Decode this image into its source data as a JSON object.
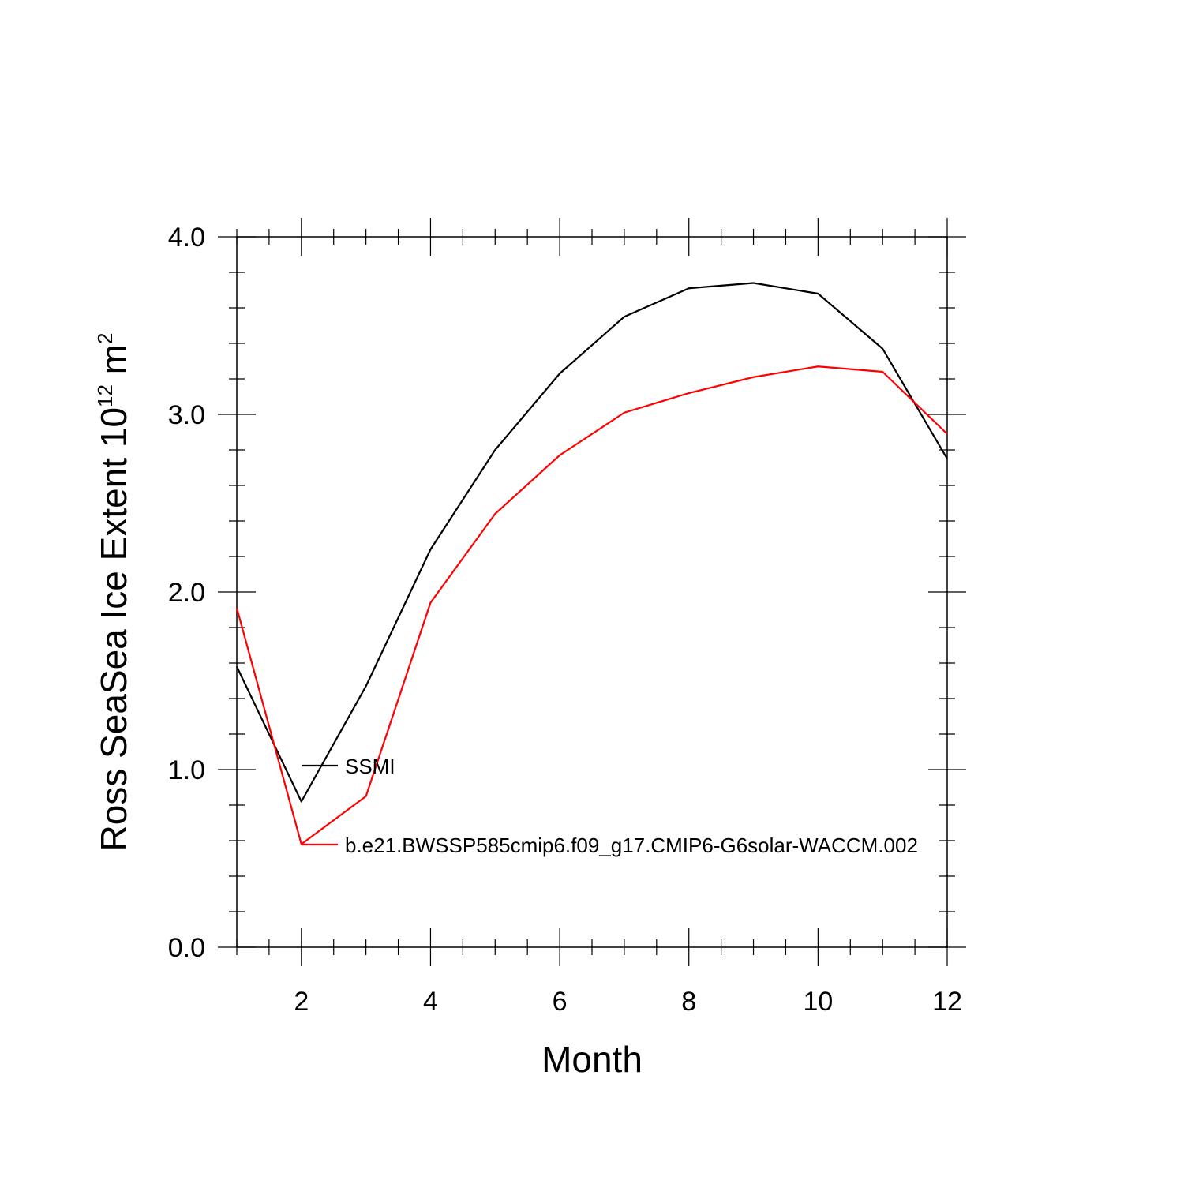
{
  "chart_data": {
    "type": "line",
    "title": "",
    "xlabel": "Month",
    "ylabel": {
      "prefix": "Ross SeaSea Ice Extent 10",
      "exponent": "12",
      "unit": " m",
      "unit_exponent": "2"
    },
    "xlim": [
      1,
      12
    ],
    "ylim": [
      0.0,
      4.0
    ],
    "x_ticks": [
      2,
      4,
      6,
      8,
      10,
      12
    ],
    "x_tick_labels": [
      "2",
      "4",
      "6",
      "8",
      "10",
      "12"
    ],
    "y_ticks": [
      0.0,
      1.0,
      2.0,
      3.0,
      4.0
    ],
    "y_tick_labels": [
      "0.0",
      "1.0",
      "2.0",
      "3.0",
      "4.0"
    ],
    "grid": false,
    "legend_position": "inside, lower-left",
    "x": [
      1,
      2,
      3,
      4,
      5,
      6,
      7,
      8,
      9,
      10,
      11,
      12
    ],
    "series": [
      {
        "name": "SSMI",
        "color": "#000000",
        "values": [
          1.58,
          0.82,
          1.47,
          2.24,
          2.8,
          3.23,
          3.55,
          3.71,
          3.74,
          3.68,
          3.37,
          2.75
        ]
      },
      {
        "name": "b.e21.BWSSP585cmip6.f09_g17.CMIP6-G6solar-WACCM.002",
        "color": "#ff0000",
        "values": [
          1.91,
          0.58,
          0.85,
          1.94,
          2.44,
          2.77,
          3.01,
          3.12,
          3.21,
          3.27,
          3.24,
          2.89
        ]
      }
    ]
  }
}
